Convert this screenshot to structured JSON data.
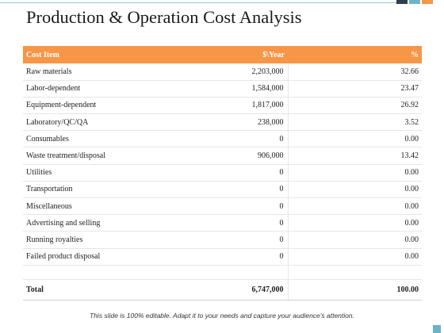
{
  "title": "Production & Operation Cost Analysis",
  "colors": {
    "header_bg": "#f79646",
    "accent_line": "#8fc7d3",
    "top_blocks": [
      "#2f3e4e",
      "#6db3c7",
      "#f79646"
    ],
    "corner": "#6db3c7"
  },
  "table": {
    "headers": [
      "Cost Item",
      "$\\Year",
      "%"
    ],
    "rows": [
      [
        "Raw materials",
        "2,203,000",
        "32.66"
      ],
      [
        "Labor-dependent",
        "1,584,000",
        "23.47"
      ],
      [
        "Equipment-dependent",
        "1,817,000",
        "26.92"
      ],
      [
        "Laboratory/QC/QA",
        "238,000",
        "3.52"
      ],
      [
        "Consumables",
        "0",
        "0.00"
      ],
      [
        "Waste treatment/disposal",
        "906,000",
        "13.42"
      ],
      [
        "Utilities",
        "0",
        "0.00"
      ],
      [
        "Transportation",
        "0",
        "0.00"
      ],
      [
        "Miscellaneous",
        "0",
        "0.00"
      ],
      [
        "Advertising  and selling",
        "0",
        "0.00"
      ],
      [
        "Running royalties",
        "0",
        "0.00"
      ],
      [
        "Failed product disposal",
        "0",
        "0.00"
      ]
    ],
    "total": [
      "Total",
      "6,747,000",
      "100.00"
    ]
  },
  "footer": "This slide is 100% editable. Adapt it to your needs and capture your audience's attention."
}
